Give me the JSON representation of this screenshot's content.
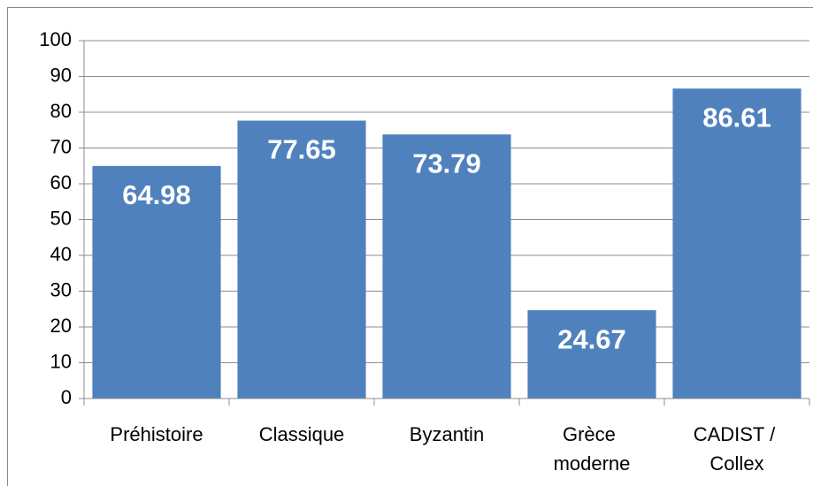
{
  "chart_data": {
    "type": "bar",
    "categories": [
      "Préhistoire",
      "Classique",
      "Byzantin",
      "Grèce moderne",
      "CADIST / Collex"
    ],
    "values": [
      64.98,
      77.65,
      73.79,
      24.67,
      86.61
    ],
    "color": "#4f81bd",
    "ylim": [
      0,
      100
    ],
    "yticks": [
      0,
      10,
      20,
      30,
      40,
      50,
      60,
      70,
      80,
      90,
      100
    ],
    "grid": true
  }
}
